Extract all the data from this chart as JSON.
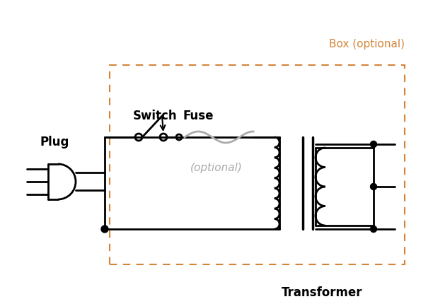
{
  "background": "#ffffff",
  "line_color": "#000000",
  "fuse_color": "#aaaaaa",
  "box_color": "#d4853a",
  "optional_text_color": "#aaaaaa",
  "figsize": [
    6.12,
    4.31
  ],
  "dpi": 100,
  "box_label": "Box (optional)",
  "plug_label": "Plug",
  "switch_label": "Switch",
  "fuse_label": "Fuse",
  "optional_label": "(optional)",
  "transformer_label": "Transformer"
}
